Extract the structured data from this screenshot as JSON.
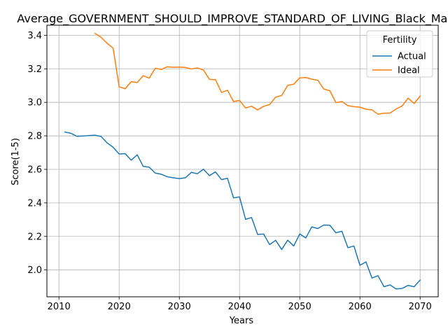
{
  "chart_data": {
    "type": "line",
    "title": "Average_GOVERNMENT_SHOULD_IMPROVE_STANDARD_OF_LIVING_Black_Male",
    "xlabel": "Years",
    "ylabel": "Score(1-5)",
    "xlim": [
      2008,
      2073
    ],
    "ylim": [
      1.84,
      3.46
    ],
    "xticks": [
      2010,
      2020,
      2030,
      2040,
      2050,
      2060,
      2070
    ],
    "yticks": [
      2.0,
      2.2,
      2.4,
      2.6,
      2.8,
      3.0,
      3.2,
      3.4
    ],
    "grid": true,
    "legend": {
      "title": "Fertility",
      "placement": "top-right"
    },
    "series": [
      {
        "name": "Actual",
        "color": "#1f77b4",
        "x": [
          2011,
          2012,
          2013,
          2014,
          2015,
          2016,
          2017,
          2018,
          2019,
          2020,
          2021,
          2022,
          2023,
          2024,
          2025,
          2026,
          2027,
          2028,
          2029,
          2030,
          2031,
          2032,
          2033,
          2034,
          2035,
          2036,
          2037,
          2038,
          2039,
          2040,
          2041,
          2042,
          2043,
          2044,
          2045,
          2046,
          2047,
          2048,
          2049,
          2050,
          2051,
          2052,
          2053,
          2054,
          2055,
          2056,
          2057,
          2058,
          2059,
          2060,
          2061,
          2062,
          2063,
          2064,
          2065,
          2066,
          2067,
          2068,
          2069,
          2070
        ],
        "values": [
          2.823,
          2.815,
          2.797,
          2.799,
          2.802,
          2.804,
          2.796,
          2.758,
          2.732,
          2.692,
          2.694,
          2.655,
          2.687,
          2.618,
          2.613,
          2.578,
          2.571,
          2.556,
          2.55,
          2.545,
          2.55,
          2.582,
          2.574,
          2.601,
          2.563,
          2.585,
          2.539,
          2.547,
          2.43,
          2.436,
          2.302,
          2.313,
          2.212,
          2.214,
          2.151,
          2.177,
          2.122,
          2.178,
          2.143,
          2.215,
          2.191,
          2.257,
          2.247,
          2.268,
          2.267,
          2.222,
          2.231,
          2.133,
          2.143,
          2.028,
          2.048,
          1.952,
          1.966,
          1.9,
          1.911,
          1.887,
          1.89,
          1.908,
          1.9,
          1.94
        ]
      },
      {
        "name": "Ideal",
        "color": "#ff7f0e",
        "x": [
          2016,
          2017,
          2018,
          2019,
          2020,
          2021,
          2022,
          2023,
          2024,
          2025,
          2026,
          2027,
          2028,
          2029,
          2030,
          2031,
          2032,
          2033,
          2034,
          2035,
          2036,
          2037,
          2038,
          2039,
          2040,
          2041,
          2042,
          2043,
          2044,
          2045,
          2046,
          2047,
          2048,
          2049,
          2050,
          2051,
          2052,
          2053,
          2054,
          2055,
          2056,
          2057,
          2058,
          2059,
          2060,
          2061,
          2062,
          2063,
          2064,
          2065,
          2066,
          2067,
          2068,
          2069,
          2070
        ],
        "values": [
          3.411,
          3.388,
          3.352,
          3.323,
          3.093,
          3.081,
          3.123,
          3.118,
          3.159,
          3.144,
          3.203,
          3.196,
          3.212,
          3.209,
          3.21,
          3.208,
          3.199,
          3.205,
          3.193,
          3.137,
          3.135,
          3.059,
          3.072,
          3.005,
          3.011,
          2.966,
          2.977,
          2.955,
          2.976,
          2.987,
          3.031,
          3.041,
          3.101,
          3.108,
          3.146,
          3.148,
          3.138,
          3.132,
          3.079,
          3.069,
          2.998,
          3.005,
          2.98,
          2.974,
          2.971,
          2.959,
          2.955,
          2.929,
          2.935,
          2.936,
          2.96,
          2.978,
          3.025,
          2.993,
          3.038
        ]
      }
    ]
  }
}
